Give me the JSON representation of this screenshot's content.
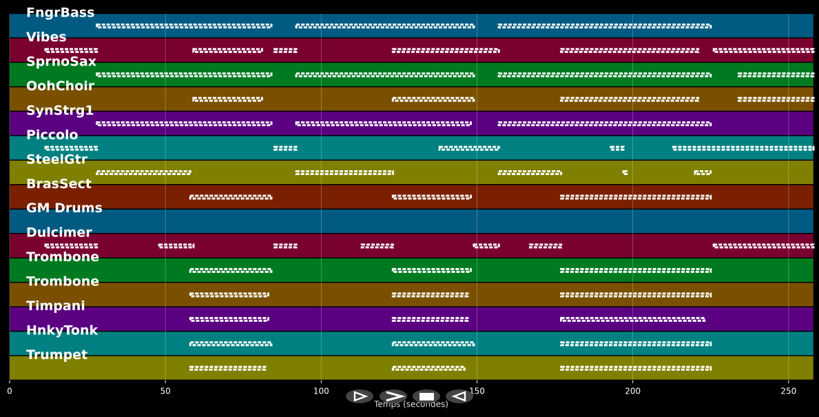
{
  "chart_data": {
    "type": "piano-roll",
    "xlabel": "Temps (secondes)",
    "xlim": [
      0,
      258
    ],
    "xticks": [
      0,
      50,
      100,
      150,
      200,
      250
    ],
    "grid": true,
    "tracks": [
      {
        "name": "FngrBass",
        "color": "#005a82",
        "segments": [
          [
            28,
            84
          ],
          [
            92,
            149
          ],
          [
            157,
            225
          ]
        ]
      },
      {
        "name": "Vibes",
        "color": "#7a0030",
        "segments": [
          [
            11.5,
            28
          ],
          [
            59,
            81
          ],
          [
            85,
            92
          ],
          [
            123,
            157
          ],
          [
            177,
            221
          ],
          [
            226,
            258
          ]
        ]
      },
      {
        "name": "SprnoSax",
        "color": "#007a20",
        "segments": [
          [
            28,
            84
          ],
          [
            92,
            149
          ],
          [
            157,
            225
          ],
          [
            234,
            258
          ]
        ]
      },
      {
        "name": "OohChoir",
        "color": "#7a5000",
        "segments": [
          [
            59,
            81
          ],
          [
            123,
            149
          ],
          [
            177,
            221
          ],
          [
            234,
            258
          ]
        ]
      },
      {
        "name": "SynStrg1",
        "color": "#5a0080",
        "segments": [
          [
            28,
            84
          ],
          [
            92,
            148
          ],
          [
            157,
            225
          ]
        ]
      },
      {
        "name": "Piccolo",
        "color": "#008080",
        "segments": [
          [
            11.5,
            28
          ],
          [
            85,
            92
          ],
          [
            138,
            157
          ],
          [
            193,
            197
          ],
          [
            213,
            258
          ]
        ]
      },
      {
        "name": "SteelGtr",
        "color": "#808000",
        "segments": [
          [
            28,
            58
          ],
          [
            92,
            123
          ],
          [
            157,
            177
          ],
          [
            197,
            198
          ],
          [
            220,
            225
          ]
        ]
      },
      {
        "name": "BrasSect",
        "color": "#7a2000",
        "segments": [
          [
            58,
            84
          ],
          [
            123,
            148
          ],
          [
            177,
            225
          ]
        ]
      },
      {
        "name": "GM Drums",
        "color": "#005a82",
        "segments": []
      },
      {
        "name": "Dulcimer",
        "color": "#7a0030",
        "segments": [
          [
            11.5,
            28
          ],
          [
            48,
            59
          ],
          [
            85,
            92
          ],
          [
            113,
            123
          ],
          [
            149,
            157
          ],
          [
            167,
            177
          ],
          [
            226,
            258
          ]
        ]
      },
      {
        "name": "Trombone",
        "color": "#007a20",
        "segments": [
          [
            58,
            84
          ],
          [
            123,
            148
          ],
          [
            177,
            225
          ]
        ]
      },
      {
        "name": "Trombone",
        "color": "#7a5000",
        "segments": [
          [
            58,
            83
          ],
          [
            123,
            147
          ],
          [
            177,
            225
          ]
        ]
      },
      {
        "name": "Timpani",
        "color": "#5a0080",
        "segments": [
          [
            58,
            83
          ],
          [
            123,
            147
          ],
          [
            177,
            223
          ]
        ]
      },
      {
        "name": "HnkyTonk",
        "color": "#008080",
        "segments": [
          [
            58,
            84
          ],
          [
            123,
            149
          ],
          [
            177,
            225
          ]
        ]
      },
      {
        "name": "Trumpet",
        "color": "#808000",
        "segments": [
          [
            58,
            82
          ],
          [
            123,
            146
          ],
          [
            177,
            225
          ]
        ]
      }
    ]
  }
}
